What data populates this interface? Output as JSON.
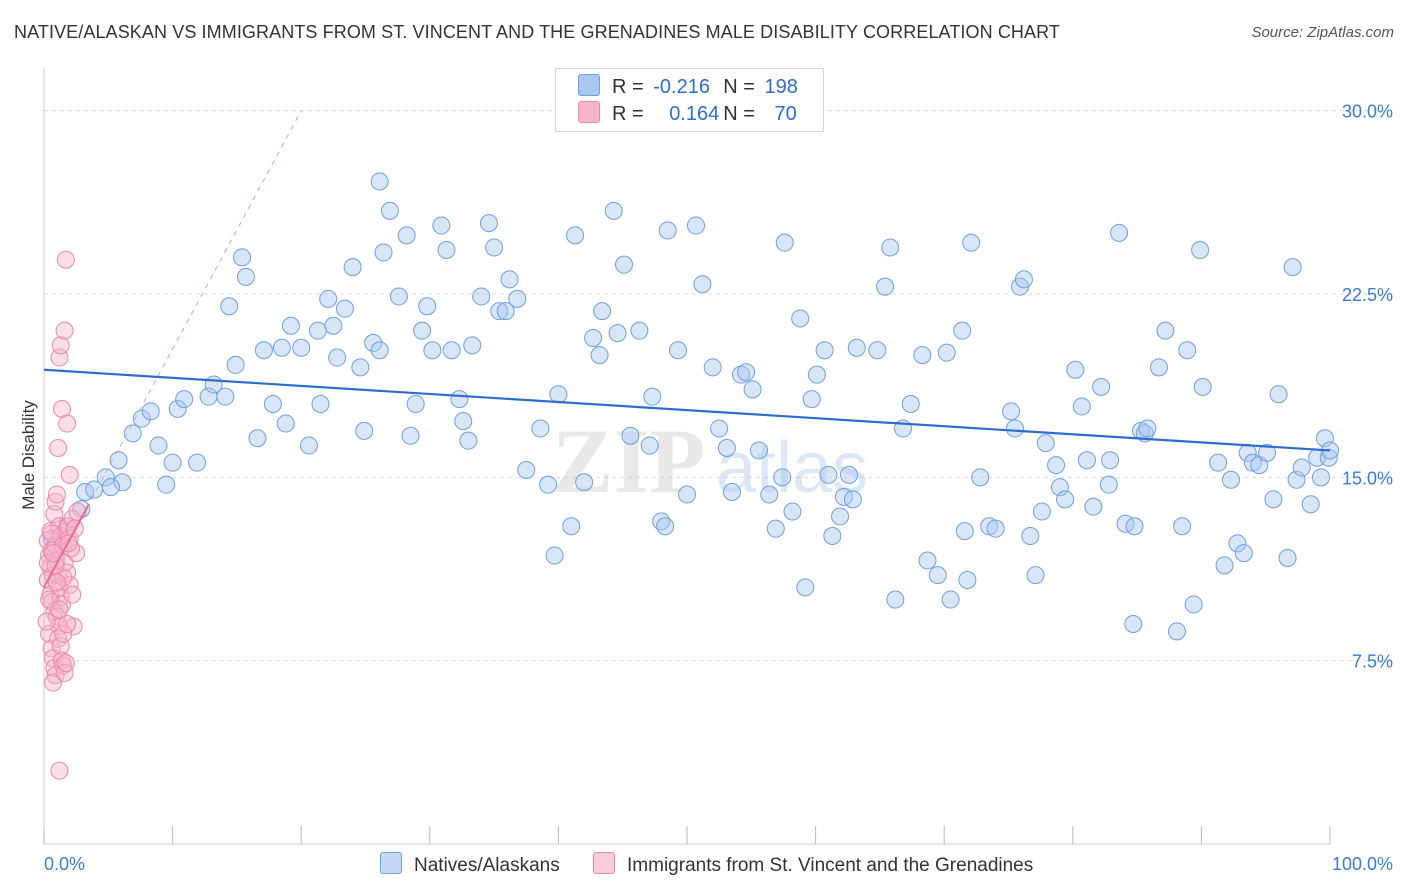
{
  "title": "NATIVE/ALASKAN VS IMMIGRANTS FROM ST. VINCENT AND THE GRENADINES MALE DISABILITY CORRELATION CHART",
  "source": "Source: ZipAtlas.com",
  "watermark": {
    "zip": "ZIP",
    "atlas": "atlas"
  },
  "legend": {
    "rows": [
      {
        "r_label": "R =",
        "r_value": "-0.216",
        "n_label": "N =",
        "n_value": "198"
      },
      {
        "r_label": "R =",
        "r_value": "0.164",
        "n_label": "N =",
        "n_value": "70"
      }
    ]
  },
  "bottom_legend": [
    "Natives/Alaskans",
    "Immigrants from St. Vincent and the Grenadines"
  ],
  "colors": {
    "blue_fill": "#a9c8f0",
    "blue_stroke": "#6fa0e0",
    "blue_line": "#2f6cd0",
    "pink_fill": "#f4b6cb",
    "pink_stroke": "#ee88a8",
    "pink_line": "#e86d94",
    "axis_text": "#3b7bd4",
    "grid": "#dddddd"
  },
  "chart_data": {
    "type": "scatter",
    "title": "NATIVE/ALASKAN VS IMMIGRANTS FROM ST. VINCENT AND THE GRENADINES MALE DISABILITY CORRELATION CHART",
    "xlabel": "",
    "ylabel": "Male Disability",
    "xlim": [
      0,
      100
    ],
    "ylim": [
      0,
      31.5
    ],
    "x_tick_labels": [
      "0.0%",
      "100.0%"
    ],
    "y_ticks": [
      7.5,
      15.0,
      22.5,
      30.0
    ],
    "y_tick_labels": [
      "7.5%",
      "15.0%",
      "22.5%",
      "30.0%"
    ],
    "grid": true,
    "legend_position": "top-center",
    "series": [
      {
        "name": "Natives/Alaskans",
        "color": "#a9c8f0",
        "trend": {
          "x": [
            0,
            100
          ],
          "y": [
            19.4,
            16.1
          ]
        },
        "points": [
          [
            0.6,
            12.5
          ],
          [
            1.0,
            12.2
          ],
          [
            0.9,
            11.8
          ],
          [
            1.8,
            13.0
          ],
          [
            2.9,
            13.7
          ],
          [
            3.2,
            14.4
          ],
          [
            3.9,
            14.5
          ],
          [
            4.8,
            15.0
          ],
          [
            5.8,
            15.7
          ],
          [
            6.1,
            14.8
          ],
          [
            5.2,
            14.6
          ],
          [
            6.9,
            16.8
          ],
          [
            7.6,
            17.4
          ],
          [
            8.3,
            17.7
          ],
          [
            8.9,
            16.3
          ],
          [
            9.5,
            14.7
          ],
          [
            10.0,
            15.6
          ],
          [
            10.4,
            17.8
          ],
          [
            10.9,
            18.2
          ],
          [
            11.9,
            15.6
          ],
          [
            12.8,
            18.3
          ],
          [
            13.2,
            18.8
          ],
          [
            14.1,
            18.3
          ],
          [
            14.9,
            19.6
          ],
          [
            15.7,
            23.2
          ],
          [
            15.4,
            24.0
          ],
          [
            14.4,
            22.0
          ],
          [
            16.6,
            16.6
          ],
          [
            17.1,
            20.2
          ],
          [
            17.8,
            18.0
          ],
          [
            18.5,
            20.3
          ],
          [
            18.8,
            17.2
          ],
          [
            19.2,
            21.2
          ],
          [
            20.0,
            20.3
          ],
          [
            20.6,
            16.3
          ],
          [
            21.3,
            21.0
          ],
          [
            21.5,
            18.0
          ],
          [
            22.1,
            22.3
          ],
          [
            22.5,
            21.2
          ],
          [
            22.8,
            19.9
          ],
          [
            23.4,
            21.9
          ],
          [
            24.0,
            23.6
          ],
          [
            24.6,
            19.5
          ],
          [
            24.9,
            16.9
          ],
          [
            25.6,
            20.5
          ],
          [
            26.1,
            20.2
          ],
          [
            26.4,
            24.2
          ],
          [
            26.1,
            27.1
          ],
          [
            26.9,
            25.9
          ],
          [
            27.6,
            22.4
          ],
          [
            28.2,
            24.9
          ],
          [
            28.5,
            16.7
          ],
          [
            28.9,
            18.0
          ],
          [
            29.4,
            21.0
          ],
          [
            29.8,
            22.0
          ],
          [
            30.2,
            20.2
          ],
          [
            30.9,
            25.3
          ],
          [
            31.3,
            24.3
          ],
          [
            31.7,
            20.2
          ],
          [
            32.3,
            18.2
          ],
          [
            32.6,
            17.3
          ],
          [
            33.0,
            16.5
          ],
          [
            33.3,
            20.4
          ],
          [
            34.0,
            22.4
          ],
          [
            34.6,
            25.4
          ],
          [
            35.0,
            24.4
          ],
          [
            35.4,
            21.8
          ],
          [
            36.2,
            23.1
          ],
          [
            35.9,
            21.8
          ],
          [
            36.8,
            22.3
          ],
          [
            37.5,
            15.3
          ],
          [
            38.6,
            17.0
          ],
          [
            39.2,
            14.7
          ],
          [
            39.7,
            11.8
          ],
          [
            40.0,
            18.4
          ],
          [
            41.0,
            13.0
          ],
          [
            41.3,
            24.9
          ],
          [
            42.0,
            14.8
          ],
          [
            42.7,
            20.7
          ],
          [
            43.2,
            20.0
          ],
          [
            43.4,
            21.8
          ],
          [
            44.3,
            25.9
          ],
          [
            44.6,
            20.9
          ],
          [
            45.1,
            23.7
          ],
          [
            45.6,
            16.7
          ],
          [
            46.3,
            21.0
          ],
          [
            47.1,
            16.3
          ],
          [
            47.3,
            18.3
          ],
          [
            48.5,
            25.1
          ],
          [
            48.0,
            13.2
          ],
          [
            48.3,
            13.0
          ],
          [
            49.3,
            20.2
          ],
          [
            50.0,
            14.3
          ],
          [
            50.7,
            25.3
          ],
          [
            51.2,
            22.9
          ],
          [
            52.0,
            19.5
          ],
          [
            52.5,
            17.0
          ],
          [
            53.1,
            16.2
          ],
          [
            53.5,
            14.4
          ],
          [
            54.2,
            19.2
          ],
          [
            54.6,
            19.3
          ],
          [
            55.1,
            18.6
          ],
          [
            55.6,
            16.1
          ],
          [
            56.4,
            14.3
          ],
          [
            56.9,
            12.9
          ],
          [
            57.4,
            15.0
          ],
          [
            57.6,
            24.6
          ],
          [
            58.2,
            13.6
          ],
          [
            58.8,
            21.5
          ],
          [
            59.2,
            10.5
          ],
          [
            59.7,
            18.2
          ],
          [
            60.1,
            19.2
          ],
          [
            60.7,
            20.2
          ],
          [
            61.0,
            15.1
          ],
          [
            61.3,
            12.6
          ],
          [
            61.9,
            13.4
          ],
          [
            62.2,
            14.2
          ],
          [
            62.9,
            14.1
          ],
          [
            62.6,
            15.1
          ],
          [
            63.2,
            20.3
          ],
          [
            65.4,
            22.8
          ],
          [
            64.8,
            20.2
          ],
          [
            65.8,
            24.4
          ],
          [
            66.2,
            10.0
          ],
          [
            66.8,
            17.0
          ],
          [
            67.4,
            18.0
          ],
          [
            68.3,
            20.0
          ],
          [
            68.7,
            11.6
          ],
          [
            69.5,
            11.0
          ],
          [
            70.2,
            20.1
          ],
          [
            70.5,
            10.0
          ],
          [
            71.4,
            21.0
          ],
          [
            71.6,
            12.8
          ],
          [
            72.1,
            24.6
          ],
          [
            71.8,
            10.8
          ],
          [
            72.8,
            15.0
          ],
          [
            73.5,
            13.0
          ],
          [
            74.0,
            12.9
          ],
          [
            75.2,
            17.7
          ],
          [
            75.5,
            17.0
          ],
          [
            75.9,
            22.8
          ],
          [
            76.2,
            23.1
          ],
          [
            76.7,
            12.6
          ],
          [
            77.1,
            11.0
          ],
          [
            77.6,
            13.6
          ],
          [
            77.9,
            16.4
          ],
          [
            78.7,
            15.5
          ],
          [
            79.0,
            14.6
          ],
          [
            79.4,
            14.1
          ],
          [
            80.2,
            19.4
          ],
          [
            80.7,
            17.9
          ],
          [
            81.1,
            15.7
          ],
          [
            81.6,
            13.8
          ],
          [
            82.2,
            18.7
          ],
          [
            82.8,
            14.7
          ],
          [
            82.9,
            15.7
          ],
          [
            83.6,
            25.0
          ],
          [
            84.1,
            13.1
          ],
          [
            84.8,
            13.0
          ],
          [
            84.7,
            9.0
          ],
          [
            85.3,
            16.9
          ],
          [
            85.6,
            16.8
          ],
          [
            85.8,
            17.0
          ],
          [
            86.7,
            19.5
          ],
          [
            87.2,
            21.0
          ],
          [
            88.1,
            8.7
          ],
          [
            88.5,
            13.0
          ],
          [
            88.9,
            20.2
          ],
          [
            89.4,
            9.8
          ],
          [
            89.9,
            24.3
          ],
          [
            90.1,
            18.7
          ],
          [
            91.3,
            15.6
          ],
          [
            91.8,
            11.4
          ],
          [
            92.3,
            14.9
          ],
          [
            92.8,
            12.3
          ],
          [
            93.3,
            11.9
          ],
          [
            93.6,
            16.0
          ],
          [
            94.0,
            15.6
          ],
          [
            94.5,
            15.5
          ],
          [
            95.1,
            16.0
          ],
          [
            95.6,
            14.1
          ],
          [
            96.0,
            18.4
          ],
          [
            96.7,
            11.7
          ],
          [
            97.1,
            23.6
          ],
          [
            97.4,
            14.9
          ],
          [
            97.8,
            15.4
          ],
          [
            98.5,
            13.9
          ],
          [
            99.0,
            15.8
          ],
          [
            99.3,
            15.0
          ],
          [
            99.6,
            16.6
          ],
          [
            99.9,
            15.8
          ],
          [
            100.0,
            16.1
          ]
        ]
      },
      {
        "name": "Immigrants from St. Vincent and the Grenadines",
        "color": "#f4b6cb",
        "trend": {
          "x": [
            0,
            20
          ],
          "y": [
            10.5,
            30.0
          ]
        },
        "points": [
          [
            0.3,
            12.4
          ],
          [
            0.4,
            11.8
          ],
          [
            0.5,
            11.3
          ],
          [
            0.6,
            12.0
          ],
          [
            0.7,
            11.0
          ],
          [
            0.3,
            10.8
          ],
          [
            0.5,
            10.2
          ],
          [
            0.6,
            9.9
          ],
          [
            0.8,
            9.5
          ],
          [
            0.4,
            8.6
          ],
          [
            0.6,
            8.0
          ],
          [
            0.7,
            7.6
          ],
          [
            0.8,
            7.2
          ],
          [
            0.9,
            6.9
          ],
          [
            0.7,
            6.6
          ],
          [
            0.5,
            12.8
          ],
          [
            0.9,
            12.2
          ],
          [
            1.0,
            11.6
          ],
          [
            1.1,
            11.0
          ],
          [
            1.2,
            10.5
          ],
          [
            1.3,
            10.1
          ],
          [
            1.4,
            9.8
          ],
          [
            1.0,
            9.3
          ],
          [
            1.2,
            8.9
          ],
          [
            1.1,
            8.4
          ],
          [
            1.3,
            8.1
          ],
          [
            1.4,
            7.5
          ],
          [
            1.5,
            7.3
          ],
          [
            1.6,
            7.0
          ],
          [
            1.7,
            7.4
          ],
          [
            0.8,
            13.5
          ],
          [
            0.9,
            14.0
          ],
          [
            1.0,
            14.3
          ],
          [
            1.2,
            13.0
          ],
          [
            1.3,
            12.6
          ],
          [
            1.5,
            12.2
          ],
          [
            1.7,
            12.8
          ],
          [
            1.9,
            13.0
          ],
          [
            2.0,
            12.5
          ],
          [
            2.2,
            13.3
          ],
          [
            2.4,
            12.9
          ],
          [
            2.6,
            13.6
          ],
          [
            1.6,
            11.5
          ],
          [
            1.8,
            11.1
          ],
          [
            2.0,
            10.6
          ],
          [
            2.2,
            10.2
          ],
          [
            2.3,
            8.9
          ],
          [
            1.5,
            10.9
          ],
          [
            1.1,
            16.2
          ],
          [
            1.4,
            17.8
          ],
          [
            1.8,
            17.2
          ],
          [
            2.0,
            15.1
          ],
          [
            1.2,
            19.9
          ],
          [
            1.3,
            20.4
          ],
          [
            1.6,
            21.0
          ],
          [
            1.7,
            23.9
          ],
          [
            1.2,
            3.0
          ],
          [
            0.3,
            11.5
          ],
          [
            0.4,
            10.0
          ],
          [
            0.2,
            9.1
          ],
          [
            0.6,
            12.7
          ],
          [
            0.9,
            11.4
          ],
          [
            1.0,
            10.7
          ],
          [
            1.2,
            9.6
          ],
          [
            1.5,
            8.6
          ],
          [
            1.8,
            9.0
          ],
          [
            2.5,
            11.9
          ],
          [
            2.1,
            12.1
          ],
          [
            1.9,
            12.3
          ],
          [
            0.7,
            11.9
          ]
        ]
      }
    ]
  }
}
